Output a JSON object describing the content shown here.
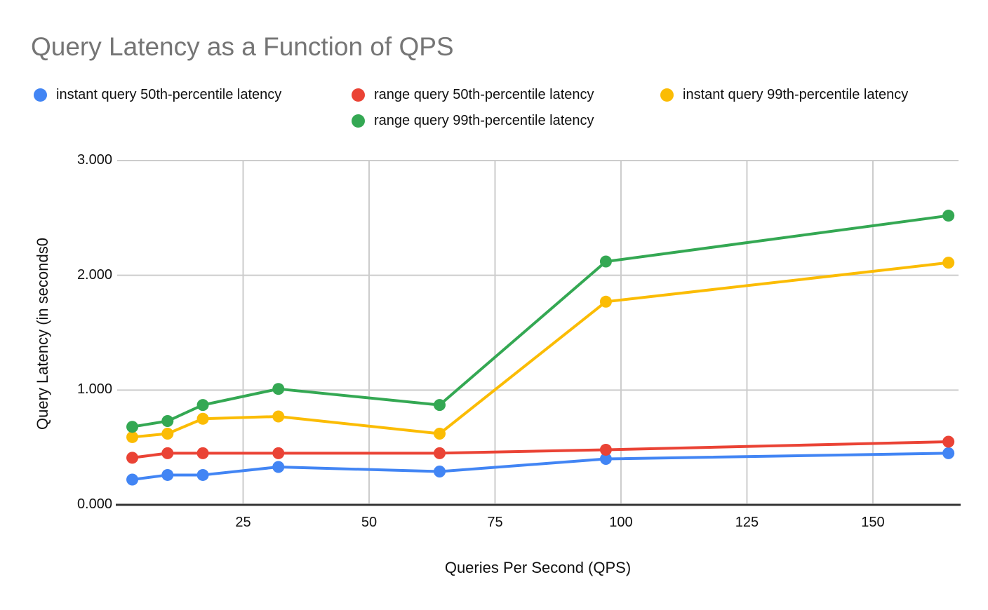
{
  "title": "Query Latency as a Function of QPS",
  "axes": {
    "x_title": "Queries Per Second (QPS)",
    "y_title": "Query Latency (in seconds0"
  },
  "chart_data": {
    "type": "line",
    "title": "Query Latency as a Function of QPS",
    "xlabel": "Queries Per Second (QPS)",
    "ylabel": "Query Latency (in seconds0",
    "x": [
      3,
      10,
      17,
      32,
      64,
      97,
      165
    ],
    "series": [
      {
        "name": "instant query 50th-percentile latency",
        "color": "#4285F4",
        "values": [
          0.22,
          0.26,
          0.26,
          0.33,
          0.29,
          0.4,
          0.45
        ]
      },
      {
        "name": "range query 50th-percentile latency",
        "color": "#EA4335",
        "values": [
          0.41,
          0.45,
          0.45,
          0.45,
          0.45,
          0.48,
          0.55
        ]
      },
      {
        "name": "instant query 99th-percentile latency",
        "color": "#FBBC04",
        "values": [
          0.59,
          0.62,
          0.75,
          0.77,
          0.62,
          1.77,
          2.11
        ]
      },
      {
        "name": "range query 99th-percentile latency",
        "color": "#34A853",
        "values": [
          0.68,
          0.73,
          0.87,
          1.01,
          0.87,
          2.12,
          2.52
        ]
      }
    ],
    "xlim": [
      0,
      167
    ],
    "ylim": [
      0,
      3
    ],
    "xticks": [
      25,
      50,
      75,
      100,
      125,
      150
    ],
    "ytick_values": [
      0,
      1,
      2,
      3
    ],
    "ytick_labels": [
      "0.000",
      "1.000",
      "2.000",
      "3.000"
    ],
    "grid": true,
    "legend_position": "top",
    "grid_color": "#cccccc",
    "axis_color": "#333333",
    "title_color": "#757575"
  }
}
